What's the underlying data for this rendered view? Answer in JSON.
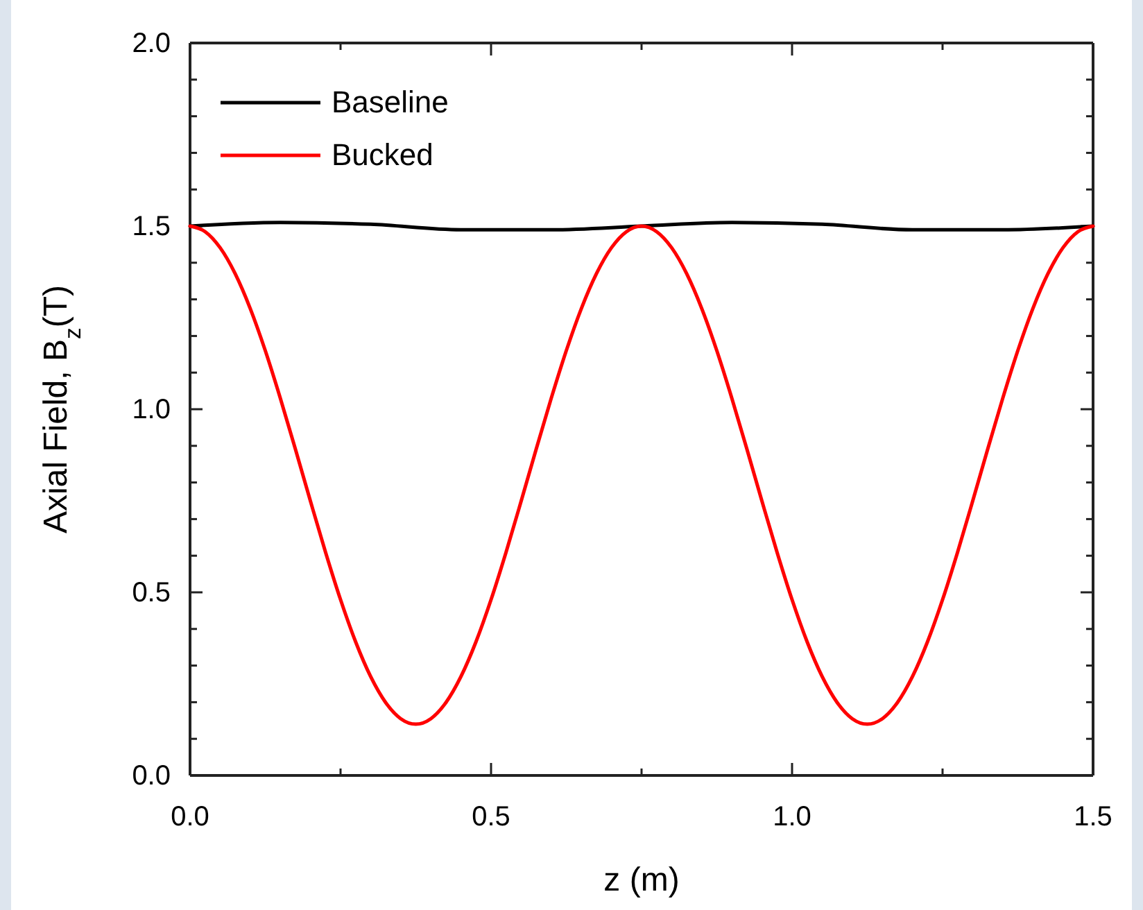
{
  "chart_data": {
    "type": "line",
    "xlabel": "z (m)",
    "ylabel": "Axial Field, B$_{z}$(T)",
    "xlim": [
      0,
      1.5
    ],
    "ylim": [
      0,
      2.0
    ],
    "xticks": [
      {
        "value": 0,
        "label": "0.0"
      },
      {
        "value": 0.25,
        "label": null
      },
      {
        "value": 0.5,
        "label": "0.5"
      },
      {
        "value": 0.75,
        "label": null
      },
      {
        "value": 1.0,
        "label": "1.0"
      },
      {
        "value": 1.25,
        "label": null
      },
      {
        "value": 1.5,
        "label": "1.5"
      }
    ],
    "yticks": [
      {
        "value": 0,
        "label": "0.0"
      },
      {
        "value": 0.1,
        "label": null
      },
      {
        "value": 0.2,
        "label": null
      },
      {
        "value": 0.3,
        "label": null
      },
      {
        "value": 0.4,
        "label": null
      },
      {
        "value": 0.5,
        "label": "0.5"
      },
      {
        "value": 0.6,
        "label": null
      },
      {
        "value": 0.7,
        "label": null
      },
      {
        "value": 0.8,
        "label": null
      },
      {
        "value": 0.9,
        "label": null
      },
      {
        "value": 1.0,
        "label": "1.0"
      },
      {
        "value": 1.1,
        "label": null
      },
      {
        "value": 1.2,
        "label": null
      },
      {
        "value": 1.3,
        "label": null
      },
      {
        "value": 1.4,
        "label": null
      },
      {
        "value": 1.5,
        "label": "1.5"
      },
      {
        "value": 1.6,
        "label": null
      },
      {
        "value": 1.7,
        "label": null
      },
      {
        "value": 1.8,
        "label": null
      },
      {
        "value": 1.9,
        "label": null
      },
      {
        "value": 2.0,
        "label": "2.0"
      }
    ],
    "grid": false,
    "legend": "top left",
    "marker": "none",
    "line_style": "solid",
    "series": [
      {
        "name": "Baseline",
        "color": "#000000",
        "x": [
          0,
          0.15,
          0.3,
          0.45,
          0.6,
          0.75,
          0.9,
          1.05,
          1.2,
          1.35,
          1.5
        ],
        "values": [
          1.5,
          1.51,
          1.505,
          1.49,
          1.49,
          1.5,
          1.51,
          1.505,
          1.49,
          1.49,
          1.5
        ]
      },
      {
        "name": "Bucked",
        "color": "#ff0000",
        "x": [
          0,
          0.025,
          0.05,
          0.075,
          0.1,
          0.125,
          0.15,
          0.175,
          0.2,
          0.225,
          0.25,
          0.275,
          0.3,
          0.325,
          0.35,
          0.375,
          0.4,
          0.425,
          0.45,
          0.475,
          0.5,
          0.525,
          0.55,
          0.575,
          0.6,
          0.625,
          0.65,
          0.675,
          0.7,
          0.725,
          0.75,
          0.775,
          0.8,
          0.825,
          0.85,
          0.875,
          0.9,
          0.925,
          0.95,
          0.975,
          1.0,
          1.025,
          1.05,
          1.075,
          1.1,
          1.125,
          1.15,
          1.175,
          1.2,
          1.225,
          1.25,
          1.275,
          1.3,
          1.325,
          1.35,
          1.375,
          1.4,
          1.425,
          1.45,
          1.475,
          1.5
        ],
        "values": [
          1.5,
          1.485,
          1.441,
          1.37,
          1.275,
          1.16,
          1.03,
          0.891,
          0.749,
          0.61,
          0.48,
          0.365,
          0.27,
          0.199,
          0.155,
          0.14,
          0.155,
          0.199,
          0.27,
          0.365,
          0.48,
          0.61,
          0.749,
          0.891,
          1.03,
          1.16,
          1.275,
          1.37,
          1.441,
          1.485,
          1.5,
          1.485,
          1.441,
          1.37,
          1.275,
          1.16,
          1.03,
          0.891,
          0.749,
          0.61,
          0.48,
          0.365,
          0.27,
          0.199,
          0.155,
          0.14,
          0.155,
          0.199,
          0.27,
          0.365,
          0.48,
          0.61,
          0.749,
          0.891,
          1.03,
          1.16,
          1.275,
          1.37,
          1.441,
          1.485,
          1.5
        ]
      }
    ]
  }
}
